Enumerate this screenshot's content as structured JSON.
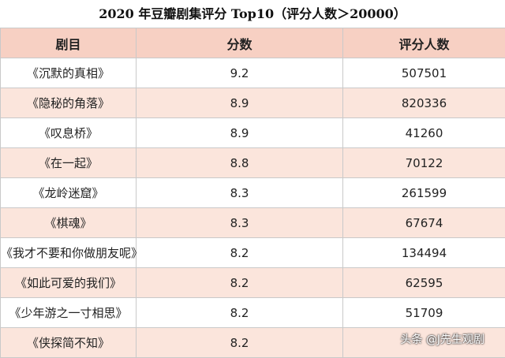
{
  "title": "2020 年豆瓣剧集评分 Top10（评分人数＞20000）",
  "headers": [
    "剧目",
    "分数",
    "评分人数"
  ],
  "rows": [
    {
      "name": "《沉默的真相》",
      "score": "9.2",
      "count": "507501"
    },
    {
      "name": "《隐秘的角落》",
      "score": "8.9",
      "count": "820336"
    },
    {
      "name": "《叹息桥》",
      "score": "8.9",
      "count": "41260"
    },
    {
      "name": "《在一起》",
      "score": "8.8",
      "count": "70122"
    },
    {
      "name": "《龙岭迷窟》",
      "score": "8.3",
      "count": "261599"
    },
    {
      "name": "《棋魂》",
      "score": "8.3",
      "count": "67674"
    },
    {
      "name": "《我才不要和你做朋友呢》",
      "score": "8.2",
      "count": "134494"
    },
    {
      "name": "《如此可爱的我们》",
      "score": "8.2",
      "count": "62595"
    },
    {
      "name": "《少年游之一寸相思》",
      "score": "8.2",
      "count": "51709"
    },
    {
      "name": "《侠探简不知》",
      "score": "8.2",
      "count": ""
    }
  ],
  "watermark": "头条 @J先生观剧",
  "colors": {
    "header_bg": "#f7d0c3",
    "stripe_bg": "#fbe5dc",
    "border": "#c9c9c9"
  }
}
